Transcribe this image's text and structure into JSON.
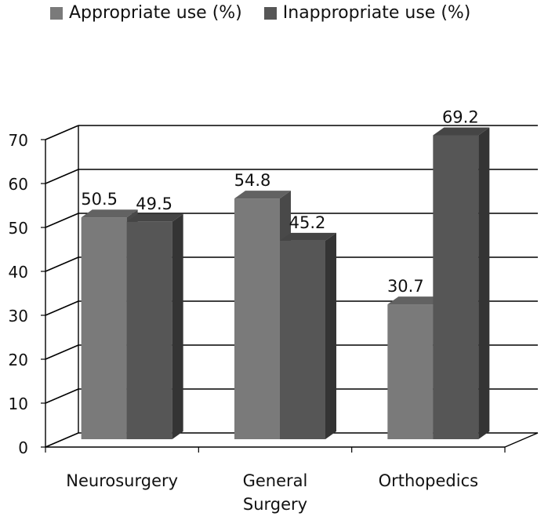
{
  "chart_data": {
    "type": "bar",
    "title": "",
    "xlabel": "",
    "ylabel": "",
    "categories": [
      "Neurosurgery",
      "General Surgery",
      "Orthopedics"
    ],
    "category_lines": [
      [
        "Neurosurgery"
      ],
      [
        "General",
        "Surgery"
      ],
      [
        "Orthopedics"
      ]
    ],
    "series": [
      {
        "name": "Appropriate use (%)",
        "values": [
          50.5,
          54.8,
          30.7
        ],
        "color": "#7a7a7a",
        "labels": [
          "50.5",
          "54.8",
          "30.7"
        ]
      },
      {
        "name": "Inappropriate use (%)",
        "values": [
          49.5,
          45.2,
          69.2
        ],
        "color": "#565656",
        "labels": [
          "49.5",
          "45.2",
          "69.2"
        ]
      }
    ],
    "ylim": [
      0,
      70
    ],
    "yticks": [
      0,
      10,
      20,
      30,
      40,
      50,
      60,
      70
    ],
    "grid": true,
    "legend_position": "top",
    "style": "3d-clustered-column"
  }
}
